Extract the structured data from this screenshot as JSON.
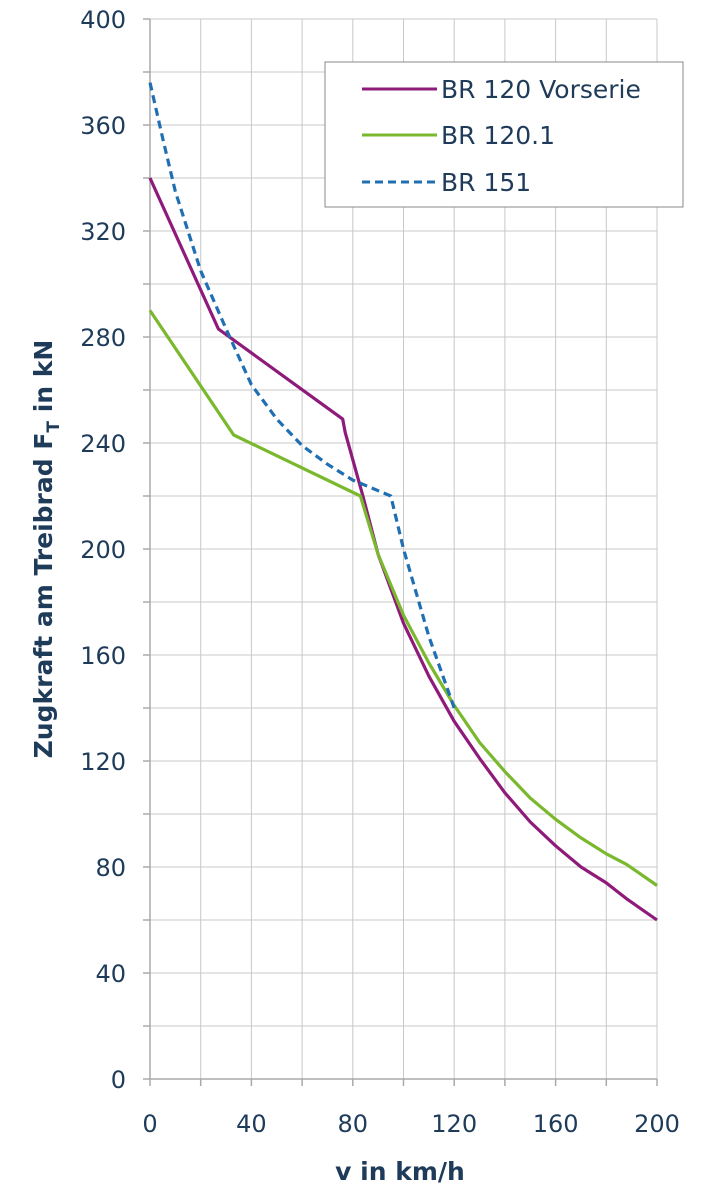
{
  "colors": {
    "axis_text": "#1f3b5a",
    "grid": "#c8c8c8",
    "axis_line": "#aaaaaa"
  },
  "chart_data": {
    "type": "line",
    "xlabel": "v in km/h",
    "ylabel": "Zugkraft am Treibrad F",
    "ylabel_sub": "T",
    "ylabel_suffix": " in kN",
    "xlim": [
      0,
      200
    ],
    "ylim": [
      0,
      400
    ],
    "x_ticks": [
      "0",
      "40",
      "80",
      "120",
      "160",
      "200"
    ],
    "y_ticks": [
      "0",
      "40",
      "80",
      "120",
      "160",
      "200",
      "240",
      "280",
      "320",
      "360",
      "400"
    ],
    "grid": true,
    "legend_position": "top-right",
    "series": [
      {
        "name": "BR 120 Vorserie",
        "color": "#8e1a7a",
        "style": "solid",
        "x": [
          0,
          27,
          76,
          77,
          84,
          90,
          100,
          110,
          120,
          130,
          140,
          150,
          160,
          170,
          180,
          188,
          200
        ],
        "y": [
          340,
          283,
          249,
          244,
          220,
          198,
          172,
          152,
          135,
          121,
          108,
          97,
          88,
          80,
          74,
          68,
          60
        ]
      },
      {
        "name": "BR 120.1",
        "color": "#7ab82e",
        "style": "solid",
        "x": [
          0,
          33,
          83,
          90,
          100,
          110,
          120,
          130,
          140,
          150,
          160,
          170,
          180,
          188,
          200
        ],
        "y": [
          290,
          243,
          220,
          198,
          175,
          157,
          141,
          127,
          116,
          106,
          98,
          91,
          85,
          81,
          73
        ]
      },
      {
        "name": "BR 151",
        "color": "#1f6fb2",
        "style": "dashed",
        "x": [
          0,
          5,
          10,
          20,
          30,
          40,
          50,
          60,
          70,
          80,
          90,
          95,
          100,
          110,
          120
        ],
        "y": [
          376,
          355,
          335,
          305,
          283,
          262,
          249,
          239,
          232,
          226,
          222,
          220,
          200,
          167,
          140
        ]
      }
    ]
  }
}
